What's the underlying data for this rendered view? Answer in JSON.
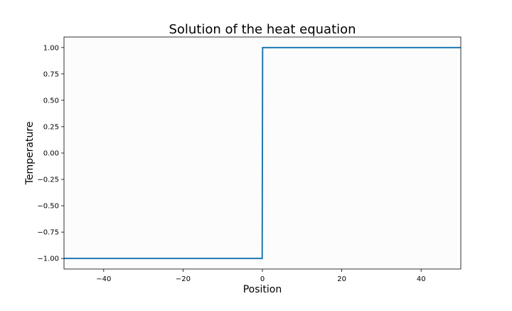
{
  "colors": {
    "line": "#1f77b4",
    "axes_background": "#fcfcfc",
    "figure_background": "#ffffff",
    "text": "#000000"
  },
  "chart_data": {
    "type": "line",
    "title": "Solution of the heat equation",
    "xlabel": "Position",
    "ylabel": "Temperature",
    "xlim": [
      -50,
      50
    ],
    "ylim": [
      -1.1,
      1.1
    ],
    "xticks": [
      -40,
      -20,
      0,
      20,
      40
    ],
    "xtick_labels": [
      "−40",
      "−20",
      "0",
      "20",
      "40"
    ],
    "yticks": [
      1.0,
      0.75,
      0.5,
      0.25,
      0.0,
      -0.25,
      -0.5,
      -0.75,
      -1.0
    ],
    "ytick_labels": [
      "1.00",
      "0.75",
      "0.50",
      "0.25",
      "0.00",
      "−0.25",
      "−0.50",
      "−0.75",
      "−1.00"
    ],
    "grid": false,
    "legend": null,
    "series": [
      {
        "x": [
          -50,
          -0.05,
          0.05,
          50
        ],
        "y": [
          -1.0,
          -1.0,
          1.0,
          1.0
        ]
      }
    ]
  }
}
